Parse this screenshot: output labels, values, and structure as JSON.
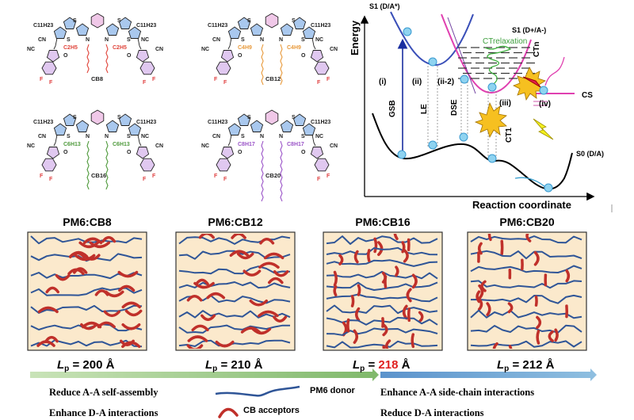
{
  "molecules": [
    {
      "name": "CB8",
      "side_chain": "C2H5",
      "side_chain_color": "#e0443a",
      "alkyl": "C11H23"
    },
    {
      "name": "CB12",
      "side_chain": "C4H9",
      "side_chain_color": "#e89a3c",
      "alkyl": "C11H23"
    },
    {
      "name": "CB16",
      "side_chain": "C6H13",
      "side_chain_color": "#4f9a3c",
      "alkyl": "C11H23"
    },
    {
      "name": "CB20",
      "side_chain": "C8H17",
      "side_chain_color": "#9b55c8",
      "alkyl": "C11H23"
    }
  ],
  "atoms": {
    "s": "S",
    "n": "N",
    "o": "O",
    "f": "F",
    "nc": "NC",
    "cn": "CN"
  },
  "energy_diagram": {
    "y_axis": "Energy",
    "x_axis": "Reaction coordinate",
    "s1_da": "S1 (D/A*)",
    "s1_ct": "S1 (D+/A-)",
    "s0": "S0 (D/A)",
    "ct_relaxation": "CTrelaxation",
    "ctn": "CTn",
    "ct1": "CT1",
    "cs": "CS",
    "steps": [
      {
        "num": "(i)",
        "name": "GSB"
      },
      {
        "num": "(ii)",
        "name": "LE"
      },
      {
        "num": "(ii-2)",
        "name": "DSE"
      },
      {
        "num": "(iii)",
        "name": ""
      },
      {
        "num": "(iv)",
        "name": ""
      }
    ]
  },
  "panels": [
    {
      "title": "PM6:CB8",
      "lp_prefix": "L",
      "lp_sub": "p",
      "lp_eq": " = ",
      "lp_value": "200",
      "lp_unit": " Å",
      "highlight": false
    },
    {
      "title": "PM6:CB12",
      "lp_prefix": "L",
      "lp_sub": "p",
      "lp_eq": " = ",
      "lp_value": "210",
      "lp_unit": " Å",
      "highlight": false
    },
    {
      "title": "PM6:CB16",
      "lp_prefix": "L",
      "lp_sub": "p",
      "lp_eq": " = ",
      "lp_value": "218",
      "lp_unit": " Å",
      "highlight": true
    },
    {
      "title": "PM6:CB20",
      "lp_prefix": "L",
      "lp_sub": "p",
      "lp_eq": " = ",
      "lp_value": "212",
      "lp_unit": " Å",
      "highlight": false
    }
  ],
  "legend": {
    "left": [
      "Reduce A-A self-assembly",
      "Enhance D-A interactions"
    ],
    "donor": "PM6 donor",
    "acceptor": "CB acceptors",
    "right": [
      "Enhance A-A side-chain interactions",
      "Reduce D-A interactions"
    ]
  },
  "colors": {
    "donor": "#2f5597",
    "acceptor": "#c0302a",
    "panel_bg": "#fbe9cc",
    "arrow_green": "#8dc07a",
    "arrow_blue": "#6a9fd0",
    "highlight": "#e02020",
    "ct_pink": "#e040b0",
    "s1_blue": "#3a4fb8",
    "circle": "#8fd3f0"
  }
}
